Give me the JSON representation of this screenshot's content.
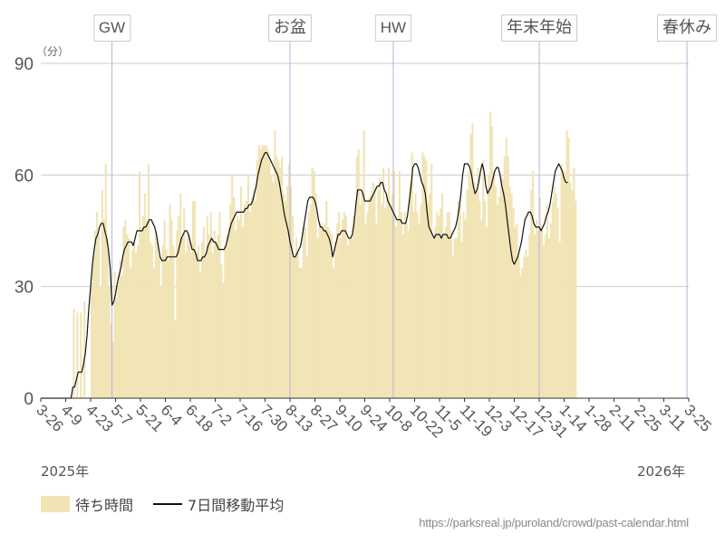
{
  "chart_data": {
    "type": "bar",
    "title": "",
    "y_unit": "（分）",
    "ylim": [
      0,
      90
    ],
    "y_ticks": [
      0,
      30,
      60,
      90
    ],
    "x_range": [
      "2025-03-26",
      "2026-03-25"
    ],
    "x_ticks": [
      "3-26",
      "4-9",
      "4-23",
      "5-7",
      "5-21",
      "6-4",
      "6-18",
      "7-2",
      "7-16",
      "7-30",
      "8-13",
      "8-27",
      "9-10",
      "9-24",
      "10-8",
      "10-22",
      "11-5",
      "11-19",
      "12-3",
      "12-17",
      "12-31",
      "1-14",
      "1-28",
      "2-11",
      "2-25",
      "3-11",
      "3-25"
    ],
    "year_labels": {
      "start": "2025年",
      "end": "2026年"
    },
    "events": [
      {
        "label": "GW",
        "date": "2025-05-05"
      },
      {
        "label": "お盆",
        "date": "2025-08-13"
      },
      {
        "label": "HW",
        "date": "2025-10-10"
      },
      {
        "label": "年末年始",
        "date": "2025-12-31"
      },
      {
        "label": "春休み",
        "date": "2026-03-24"
      }
    ],
    "series": [
      {
        "name": "待ち時間",
        "type": "bar",
        "color": "#f1e4b5",
        "x_start": "2025-03-26",
        "x_step_days": 1,
        "values": [
          0,
          0,
          0,
          0,
          0,
          0,
          0,
          0,
          0,
          0,
          0,
          0,
          0,
          0,
          0,
          0,
          0,
          0,
          24,
          0,
          23,
          0,
          23,
          0,
          26,
          0,
          0,
          0,
          31,
          38,
          45,
          50,
          44,
          30,
          56,
          48,
          63,
          43,
          30,
          20,
          15,
          34,
          27,
          33,
          37,
          33,
          46,
          48,
          44,
          43,
          35,
          40,
          42,
          39,
          41,
          61,
          46,
          49,
          55,
          48,
          63,
          42,
          41,
          35,
          45,
          42,
          38,
          30,
          41,
          48,
          40,
          37,
          52,
          48,
          41,
          21,
          45,
          49,
          55,
          43,
          51,
          39,
          44,
          44,
          39,
          53,
          53,
          39,
          41,
          34,
          42,
          46,
          38,
          49,
          44,
          50,
          39,
          45,
          42,
          44,
          50,
          36,
          31,
          41,
          44,
          46,
          52,
          60,
          54,
          45,
          49,
          48,
          57,
          46,
          52,
          53,
          60,
          50,
          54,
          56,
          53,
          64,
          68,
          67,
          68,
          68,
          68,
          67,
          64,
          60,
          58,
          72,
          65,
          64,
          62,
          65,
          55,
          53,
          57,
          63,
          57,
          49,
          38,
          43,
          39,
          35,
          35,
          46,
          46,
          38,
          50,
          52,
          62,
          61,
          55,
          43,
          46,
          47,
          45,
          47,
          53,
          46,
          45,
          44,
          35,
          42,
          47,
          50,
          43,
          48,
          50,
          49,
          41,
          43,
          43,
          49,
          47,
          65,
          67,
          52,
          56,
          72,
          47,
          50,
          54,
          55,
          58,
          57,
          47,
          56,
          59,
          52,
          62,
          51,
          55,
          62,
          51,
          55,
          61,
          46,
          48,
          61,
          50,
          44,
          50,
          47,
          45,
          58,
          66,
          50,
          55,
          50,
          47,
          52,
          66,
          65,
          64,
          53,
          55,
          63,
          43,
          46,
          50,
          49,
          51,
          55,
          44,
          46,
          50,
          50,
          45,
          38,
          43,
          43,
          53,
          52,
          42,
          50,
          48,
          56,
          61,
          71,
          74,
          58,
          55,
          62,
          53,
          48,
          64,
          53,
          46,
          60,
          77,
          73,
          61,
          57,
          52,
          54,
          60,
          59,
          65,
          70,
          65,
          57,
          55,
          51,
          46,
          47,
          38,
          33,
          35,
          38,
          40,
          38,
          44,
          56,
          61,
          44,
          48,
          45,
          54,
          46,
          41,
          44,
          52,
          43,
          47,
          53,
          57,
          55,
          51,
          42,
          63,
          60,
          61,
          72,
          70,
          58,
          56,
          62,
          53
        ]
      },
      {
        "name": "7日間移動平均",
        "type": "line",
        "color": "#111111",
        "x_start": "2025-03-26",
        "x_step_days": 1,
        "values": [
          0,
          0,
          0,
          0,
          0,
          0,
          0,
          0,
          0,
          0,
          0,
          0,
          0,
          0,
          0,
          0,
          0,
          0,
          3,
          3,
          5,
          7,
          7,
          7,
          9,
          12,
          17,
          24,
          30,
          36,
          40,
          43,
          44,
          46,
          47,
          47,
          45,
          43,
          40,
          35,
          25,
          26,
          28,
          31,
          33,
          35,
          38,
          40,
          41,
          42,
          42,
          42,
          41,
          43,
          45,
          45,
          45,
          45,
          46,
          46,
          47,
          48,
          48,
          47,
          46,
          44,
          41,
          38,
          37,
          37,
          37,
          38,
          38,
          38,
          38,
          38,
          38,
          39,
          41,
          43,
          44,
          45,
          45,
          44,
          42,
          40,
          40,
          39,
          37,
          37,
          37,
          38,
          38,
          39,
          41,
          42,
          43,
          42,
          42,
          41,
          40,
          40,
          40,
          40,
          41,
          43,
          45,
          47,
          48,
          49,
          50,
          50,
          50,
          50,
          50,
          51,
          51,
          52,
          52,
          53,
          55,
          57,
          60,
          62,
          64,
          65,
          66,
          66,
          65,
          64,
          63,
          62,
          61,
          60,
          58,
          55,
          52,
          49,
          47,
          45,
          42,
          40,
          38,
          38,
          39,
          40,
          41,
          44,
          47,
          50,
          53,
          54,
          54,
          54,
          53,
          51,
          48,
          46,
          46,
          45,
          45,
          44,
          43,
          41,
          38,
          40,
          42,
          44,
          44,
          45,
          45,
          45,
          44,
          43,
          43,
          44,
          47,
          52,
          56,
          56,
          56,
          55,
          53,
          53,
          53,
          53,
          54,
          55,
          56,
          57,
          57,
          58,
          58,
          56,
          55,
          53,
          52,
          51,
          50,
          49,
          48,
          48,
          48,
          47,
          47,
          47,
          49,
          53,
          57,
          62,
          63,
          63,
          62,
          60,
          58,
          57,
          55,
          50,
          46,
          45,
          44,
          43,
          44,
          44,
          44,
          43,
          44,
          44,
          44,
          43,
          43,
          44,
          45,
          46,
          48,
          51,
          55,
          60,
          63,
          63,
          63,
          62,
          60,
          57,
          55,
          56,
          58,
          61,
          63,
          61,
          57,
          55,
          56,
          57,
          59,
          61,
          62,
          62,
          60,
          57,
          55,
          52,
          48,
          44,
          40,
          37,
          36,
          37,
          38,
          40,
          42,
          45,
          48,
          49,
          50,
          50,
          49,
          47,
          46,
          46,
          46,
          45,
          46,
          47,
          49,
          50,
          52,
          55,
          58,
          61,
          62,
          63,
          62,
          61,
          59,
          58,
          58
        ]
      }
    ]
  },
  "legend": {
    "bar_label": "待ち時間",
    "line_label": "7日間移動平均"
  },
  "source": "https://parksreal.jp/puroland/crowd/past-calendar.html"
}
